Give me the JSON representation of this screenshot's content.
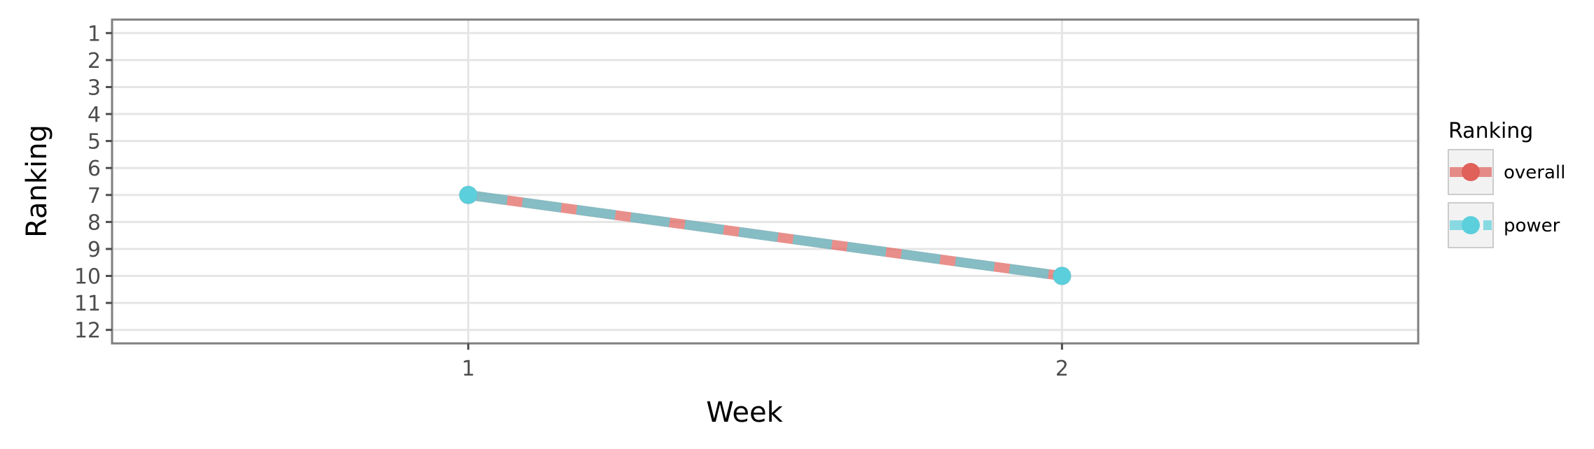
{
  "chart_data": {
    "type": "line",
    "title": "",
    "xlabel": "Week",
    "ylabel": "Ranking",
    "x": [
      1,
      2
    ],
    "x_ticks": [
      "1",
      "2"
    ],
    "xlim": [
      0.4,
      2.6
    ],
    "y_ticks": [
      "1",
      "2",
      "3",
      "4",
      "5",
      "6",
      "7",
      "8",
      "9",
      "10",
      "11",
      "12"
    ],
    "ylim": [
      12.5,
      0.5
    ],
    "y_reversed": true,
    "grid": true,
    "legend": {
      "title": "Ranking",
      "placement": "right"
    },
    "series": [
      {
        "name": "overall",
        "values": [
          7,
          10
        ],
        "color": "#e0605a",
        "style": "solid"
      },
      {
        "name": "power",
        "values": [
          7,
          10
        ],
        "color": "#5bcfdb",
        "style": "dashed"
      }
    ]
  }
}
